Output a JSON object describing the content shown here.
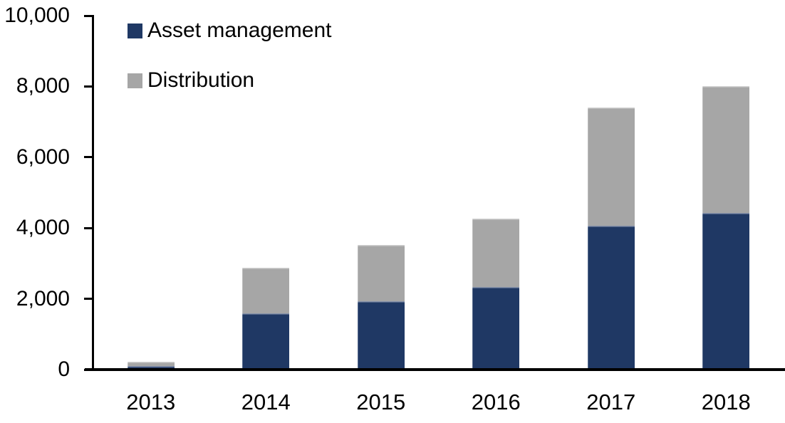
{
  "chart_data": {
    "type": "bar",
    "stacked": true,
    "categories": [
      "2013",
      "2014",
      "2015",
      "2016",
      "2017",
      "2018"
    ],
    "series": [
      {
        "name": "Asset management",
        "color": "#1F3864",
        "values": [
          70,
          1550,
          1900,
          2300,
          4050,
          4400
        ]
      },
      {
        "name": "Distribution",
        "color": "#A6A6A6",
        "values": [
          105,
          1300,
          1600,
          1950,
          3350,
          3600
        ]
      }
    ],
    "ylim": [
      0,
      10000
    ],
    "ytick_labels": [
      "0",
      "2,000",
      "4,000",
      "6,000",
      "8,000",
      "10,000"
    ],
    "legend_position": "top-left",
    "grid": false,
    "axis_color": "#000000",
    "text_color": "#000000",
    "background_color": "#FFFFFF"
  }
}
